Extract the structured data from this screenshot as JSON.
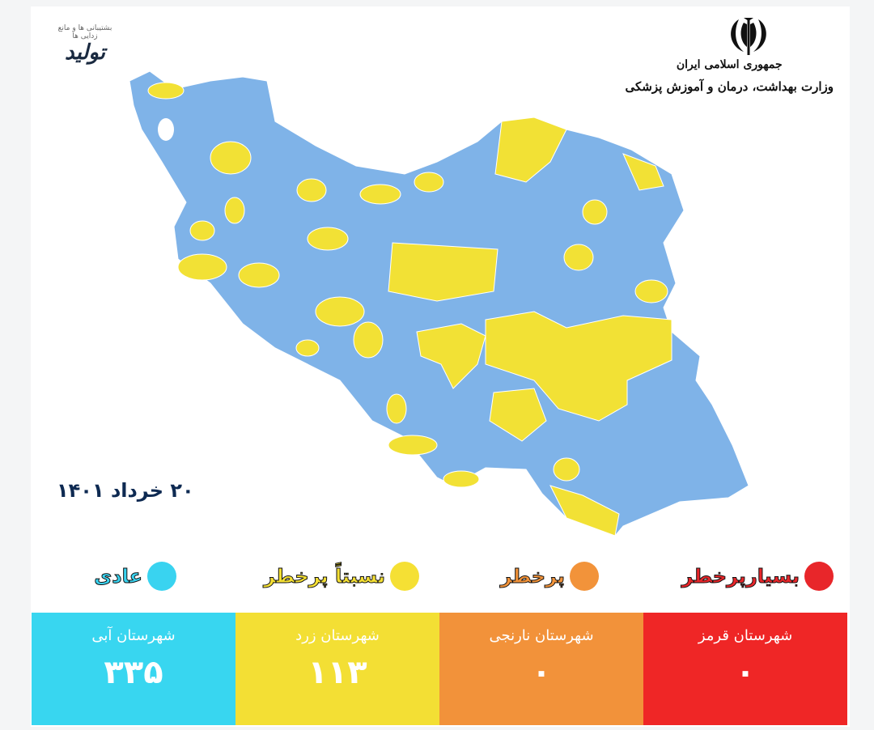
{
  "header": {
    "watermark_logo": {
      "title": "تولید",
      "subtitle": "بشتیبانی ها و مانع زدایی ها"
    },
    "emblem_icon": "iran-emblem",
    "government": "جمهوری اسلامی ایران",
    "ministry": "وزارت بهداشت، درمان و آموزش پزشکی"
  },
  "date": "۲۰ خرداد ۱۴۰۱",
  "map": {
    "base_color": "#7fb3e8",
    "highlight_color": "#f2e135",
    "border_color": "#ffffff"
  },
  "legend": [
    {
      "label": "بسیارپرخطر",
      "color": "#e8262a"
    },
    {
      "label": "پرخطر",
      "color": "#f2933a"
    },
    {
      "label": "نسبتاً پرخطر",
      "color": "#f5e034"
    },
    {
      "label": "عادی",
      "color": "#39d3f0"
    }
  ],
  "stats": [
    {
      "title": "شهرستان قرمز",
      "value": "۰",
      "color": "#ef2626"
    },
    {
      "title": "شهرستان نارنجی",
      "value": "۰",
      "color": "#f2923a"
    },
    {
      "title": "شهرستان زرد",
      "value": "۱۱۳",
      "color": "#f3df34"
    },
    {
      "title": "شهرستان آبی",
      "value": "۳۳۵",
      "color": "#38d6f0"
    }
  ]
}
